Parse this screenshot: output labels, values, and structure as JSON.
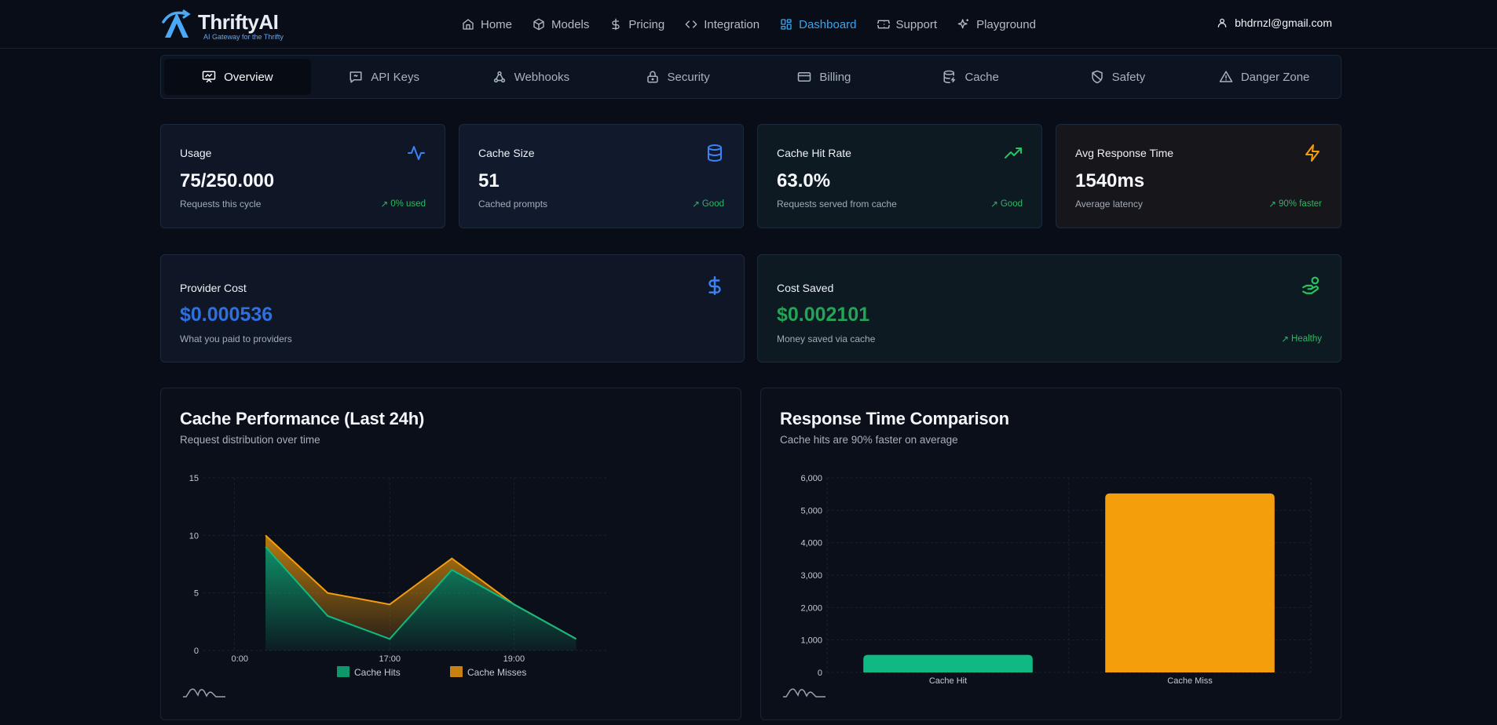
{
  "brand": {
    "name": "ThriftyAI",
    "tagline": "AI Gateway for the Thrifty"
  },
  "nav": {
    "items": [
      {
        "label": "Home",
        "icon": "home-icon",
        "active": false
      },
      {
        "label": "Models",
        "icon": "cube-icon",
        "active": false
      },
      {
        "label": "Pricing",
        "icon": "dollar-icon",
        "active": false
      },
      {
        "label": "Integration",
        "icon": "code-icon",
        "active": false
      },
      {
        "label": "Dashboard",
        "icon": "grid-icon",
        "active": true
      },
      {
        "label": "Support",
        "icon": "ticket-icon",
        "active": false
      },
      {
        "label": "Playground",
        "icon": "sparkles-icon",
        "active": false
      }
    ]
  },
  "user": {
    "email": "bhdrnzl@gmail.com",
    "icon": "user-icon"
  },
  "tabs": [
    {
      "label": "Overview",
      "icon": "presentation-icon",
      "active": true
    },
    {
      "label": "API Keys",
      "icon": "key-message-icon",
      "active": false
    },
    {
      "label": "Webhooks",
      "icon": "webhook-icon",
      "active": false
    },
    {
      "label": "Security",
      "icon": "lock-icon",
      "active": false
    },
    {
      "label": "Billing",
      "icon": "credit-card-icon",
      "active": false
    },
    {
      "label": "Cache",
      "icon": "database-icon",
      "active": false
    },
    {
      "label": "Safety",
      "icon": "shield-icon",
      "active": false
    },
    {
      "label": "Danger Zone",
      "icon": "warning-icon",
      "active": false
    }
  ],
  "stats": [
    {
      "title": "Usage",
      "value": "75/250.000",
      "desc": "Requests this cycle",
      "trend": "0% used",
      "icon": "activity-icon",
      "color": "#3b82f6"
    },
    {
      "title": "Cache Size",
      "value": "51",
      "desc": "Cached prompts",
      "trend": "Good",
      "icon": "database-icon",
      "color": "#3b82f6"
    },
    {
      "title": "Cache Hit Rate",
      "value": "63.0%",
      "desc": "Requests served from cache",
      "trend": "Good",
      "icon": "trending-up-icon",
      "color": "#22c55e"
    },
    {
      "title": "Avg Response Time",
      "value": "1540ms",
      "desc": "Average latency",
      "trend": "90% faster",
      "icon": "lightning-icon",
      "color": "#f59e0b"
    }
  ],
  "costs": [
    {
      "title": "Provider Cost",
      "value": "$0.000536",
      "desc": "What you paid to providers",
      "trend": "",
      "icon": "dollar-icon",
      "color": "#2f6fe0"
    },
    {
      "title": "Cost Saved",
      "value": "$0.002101",
      "desc": "Money saved via cache",
      "trend": "Healthy",
      "icon": "hand-coin-icon",
      "color": "#22a556"
    }
  ],
  "charts": {
    "performance": {
      "title": "Cache Performance (Last 24h)",
      "subtitle": "Request distribution over time"
    },
    "response": {
      "title": "Response Time Comparison",
      "subtitle": "Cache hits are 90% faster on average"
    }
  },
  "chart_data": [
    {
      "type": "area",
      "title": "Cache Performance (Last 24h)",
      "subtitle": "Request distribution over time",
      "stacked": true,
      "x_ticks": [
        "0:00",
        "17:00",
        "19:00"
      ],
      "x_tick_positions": [
        0,
        2.5,
        4.5
      ],
      "ylim": [
        0,
        15
      ],
      "y_ticks": [
        0,
        5,
        10,
        15
      ],
      "x": [
        0.5,
        1.5,
        2.5,
        3.5,
        4.5,
        5.5
      ],
      "series": [
        {
          "name": "Cache Hits",
          "values": [
            9,
            3,
            1,
            7,
            4,
            1
          ],
          "color": "#10b981"
        },
        {
          "name": "Cache Misses",
          "values": [
            1,
            2,
            3,
            1,
            0,
            0
          ],
          "color": "#f59e0b"
        }
      ],
      "xlim": [
        -0.5,
        6
      ],
      "grid": true,
      "legend": "bottom"
    },
    {
      "type": "bar",
      "title": "Response Time Comparison",
      "subtitle": "Cache hits are 90% faster on average",
      "categories": [
        "Cache Hit",
        "Cache Miss"
      ],
      "values": [
        540,
        5520
      ],
      "colors": [
        "#10b981",
        "#f59e0b"
      ],
      "ylim": [
        0,
        6000
      ],
      "y_ticks": [
        0,
        1000,
        2000,
        3000,
        4000,
        5000,
        6000
      ],
      "y_tick_labels": [
        "0",
        "1,000",
        "2,000",
        "3,000",
        "4,000",
        "5,000",
        "6,000"
      ],
      "grid": true
    }
  ]
}
